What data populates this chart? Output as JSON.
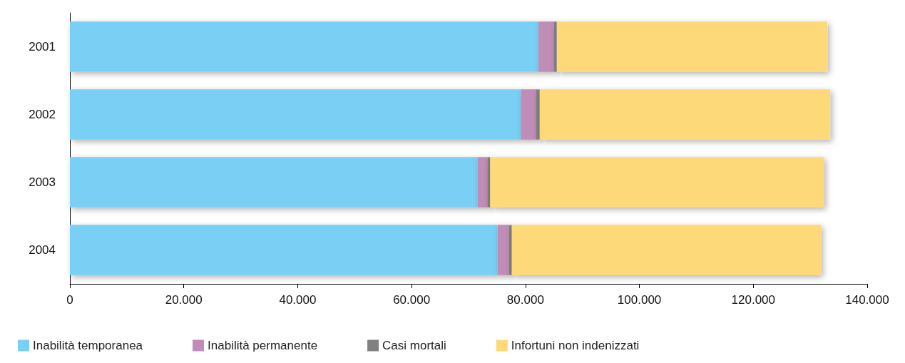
{
  "chart_data": {
    "type": "bar",
    "orientation": "horizontal",
    "stacked": true,
    "categories": [
      "2001",
      "2002",
      "2003",
      "2004"
    ],
    "series": [
      {
        "name": "Inabilità temporanea",
        "color": "#79d0f4",
        "values": [
          82300,
          79200,
          71600,
          75100
        ]
      },
      {
        "name": "Inabilità permanente",
        "color": "#c08cb8",
        "values": [
          2700,
          2700,
          1700,
          2000
        ]
      },
      {
        "name": "Casi mortali",
        "color": "#808080",
        "values": [
          500,
          600,
          500,
          500
        ]
      },
      {
        "name": "Infortuni non indenizzati",
        "color": "#fdd97a",
        "values": [
          47500,
          51000,
          58600,
          54300
        ]
      }
    ],
    "xlim": [
      0,
      140000
    ],
    "xticks": [
      0,
      {
        "value": 20000,
        "label": "20.000"
      },
      {
        "value": 40000,
        "label": "40.000"
      },
      {
        "value": 60000,
        "label": "60.000"
      },
      {
        "value": 80000,
        "label": "80.000"
      },
      {
        "value": 100000,
        "label": "100.000"
      },
      {
        "value": 120000,
        "label": "120.000"
      },
      {
        "value": 140000,
        "label": "140.000"
      }
    ],
    "grid": false,
    "legend": "bottom left"
  }
}
